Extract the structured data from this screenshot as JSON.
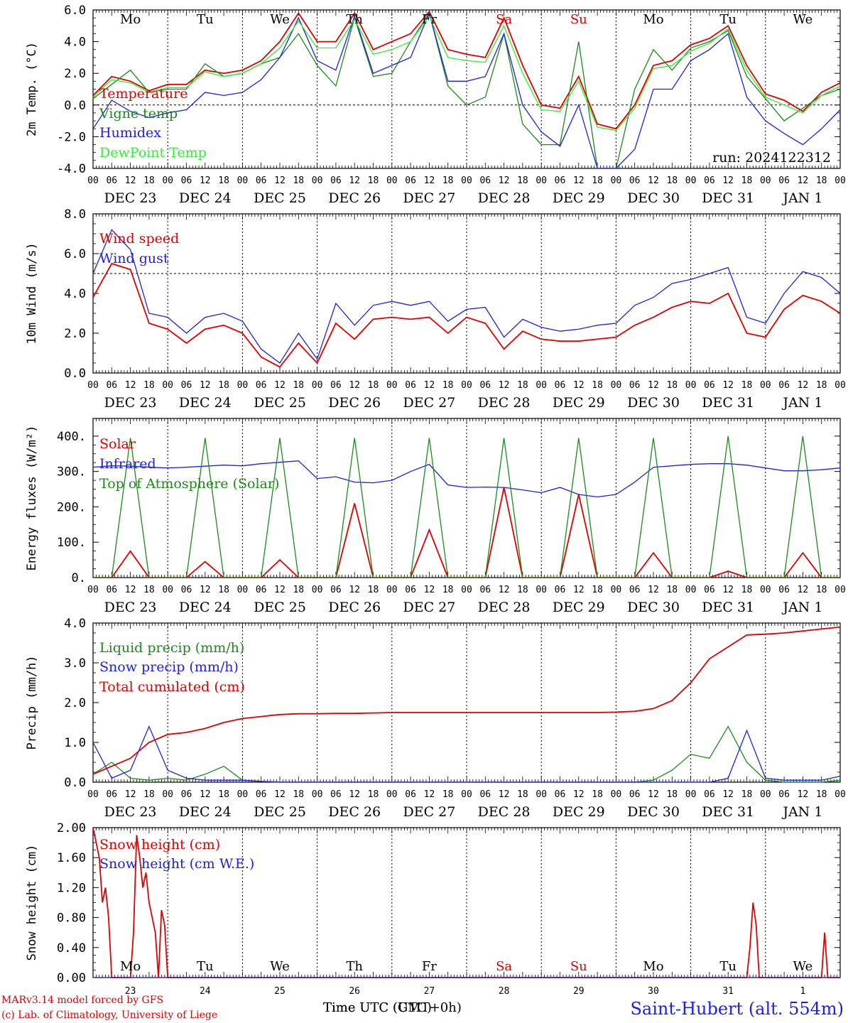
{
  "colors": {
    "red": "#e00000",
    "green": "#1a8a1a",
    "blue": "#2020e0",
    "lightgreen": "#33ee33",
    "black": "#000000"
  },
  "x_axis": {
    "hour_labels": [
      "00",
      "06",
      "12",
      "18"
    ],
    "final_hour_label": "00",
    "dates": [
      "DEC 23",
      "DEC 24",
      "DEC 25",
      "DEC 26",
      "DEC 27",
      "DEC 28",
      "DEC 29",
      "DEC 30",
      "DEC 31",
      "JAN  1"
    ],
    "weekdays": [
      "Mo",
      "Tu",
      "We",
      "Th",
      "Fr",
      "Sa",
      "Su",
      "Mo",
      "Tu",
      "We"
    ],
    "weekend_flags": [
      false,
      false,
      false,
      false,
      false,
      true,
      true,
      false,
      false,
      false
    ],
    "day_numbers": [
      "23",
      "24",
      "25",
      "26",
      "27",
      "28",
      "29",
      "30",
      "31",
      "1"
    ]
  },
  "footer": {
    "credit_line1": "MARv3.14 model forced by GFS",
    "credit_line2": "(c) Lab. of Climatology, University of Liege",
    "xlabel_a": "Time UTC (UTC)",
    "xlabel_b": "Time UTC (GMT+0h)",
    "station": "Saint-Hubert (alt. 554m)"
  },
  "chart_data": [
    {
      "type": "line",
      "ylabel": "2m Temp. (°C)",
      "ylim": [
        -4,
        6
      ],
      "yticks": [
        "6.0",
        "4.0",
        "2.0",
        "0.0",
        "-2.0",
        "-4.0"
      ],
      "ytick_values": [
        6,
        4,
        2,
        0,
        -2,
        -4
      ],
      "reference_line": 0,
      "run_label": "run: 2024122312",
      "x": [
        0,
        6,
        12,
        18,
        24,
        30,
        36,
        42,
        48,
        54,
        60,
        66,
        72,
        78,
        84,
        90,
        96,
        102,
        108,
        114,
        120,
        126,
        132,
        138,
        144,
        150,
        156,
        162,
        168,
        174,
        180,
        186,
        192,
        198,
        204,
        210,
        216,
        222,
        228,
        234,
        240
      ],
      "series": [
        {
          "name": "Temperature",
          "color": "red",
          "values": [
            0.6,
            1.8,
            1.5,
            0.9,
            1.3,
            1.3,
            2.2,
            2.0,
            2.2,
            2.8,
            4.0,
            5.8,
            4.0,
            4.0,
            5.8,
            3.5,
            4.0,
            4.5,
            5.9,
            3.5,
            3.2,
            3.0,
            5.5,
            2.5,
            0.0,
            -0.2,
            1.8,
            -1.2,
            -1.5,
            0.0,
            2.5,
            2.8,
            3.8,
            4.2,
            5.0,
            2.5,
            0.7,
            0.3,
            -0.4,
            0.8,
            1.4
          ]
        },
        {
          "name": "Vigne temp",
          "color": "green",
          "values": [
            0.4,
            1.3,
            2.2,
            0.8,
            1.0,
            1.0,
            2.6,
            1.8,
            2.0,
            2.6,
            3.0,
            4.5,
            2.5,
            1.2,
            5.5,
            1.8,
            2.0,
            4.0,
            5.8,
            1.2,
            0.0,
            0.5,
            4.5,
            -1.2,
            -2.5,
            -2.5,
            4.0,
            -4.0,
            -4.0,
            1.0,
            3.5,
            2.2,
            3.6,
            4.0,
            4.7,
            1.8,
            0.4,
            -1.0,
            -0.2,
            0.6,
            1.0
          ]
        },
        {
          "name": "Humidex",
          "color": "blue",
          "values": [
            -1.5,
            0.3,
            -0.4,
            -0.8,
            -0.5,
            -0.3,
            0.8,
            0.6,
            0.8,
            1.6,
            3.0,
            5.5,
            2.8,
            2.2,
            5.6,
            2.0,
            2.5,
            3.0,
            5.8,
            1.5,
            1.5,
            1.8,
            4.5,
            0.0,
            -1.7,
            -2.6,
            0.0,
            -4.0,
            -4.0,
            -2.8,
            1.0,
            1.0,
            2.8,
            3.5,
            4.5,
            0.5,
            -1.0,
            -1.8,
            -2.5,
            -1.5,
            -0.3
          ]
        },
        {
          "name": "DewPoint Temp",
          "color": "lightgreen",
          "values": [
            0.5,
            1.6,
            1.4,
            0.8,
            1.1,
            1.1,
            2.1,
            1.8,
            2.0,
            2.6,
            3.6,
            5.3,
            3.6,
            3.6,
            5.4,
            3.2,
            3.5,
            4.0,
            5.6,
            3.0,
            2.8,
            2.7,
            5.0,
            2.0,
            -0.3,
            -0.4,
            1.5,
            -1.4,
            -1.6,
            -0.2,
            2.3,
            2.5,
            3.4,
            3.9,
            4.8,
            2.2,
            0.5,
            0.0,
            -0.5,
            0.6,
            1.2
          ]
        }
      ]
    },
    {
      "type": "line",
      "ylabel": "10m Wind (m/s)",
      "ylim": [
        0,
        8
      ],
      "yticks": [
        "8.0",
        "6.0",
        "4.0",
        "2.0",
        "0.0"
      ],
      "ytick_values": [
        8,
        6,
        4,
        2,
        0
      ],
      "reference_line": 5,
      "x": [
        0,
        6,
        12,
        18,
        24,
        30,
        36,
        42,
        48,
        54,
        60,
        66,
        72,
        78,
        84,
        90,
        96,
        102,
        108,
        114,
        120,
        126,
        132,
        138,
        144,
        150,
        156,
        162,
        168,
        174,
        180,
        186,
        192,
        198,
        204,
        210,
        216,
        222,
        228,
        234,
        240
      ],
      "series": [
        {
          "name": "Wind speed",
          "color": "red",
          "values": [
            3.8,
            5.5,
            5.2,
            2.5,
            2.2,
            1.5,
            2.2,
            2.4,
            2.0,
            0.8,
            0.3,
            1.5,
            0.5,
            2.5,
            1.7,
            2.7,
            2.8,
            2.7,
            2.8,
            2.0,
            2.8,
            2.5,
            1.2,
            2.1,
            1.7,
            1.6,
            1.6,
            1.7,
            1.8,
            2.4,
            2.8,
            3.3,
            3.6,
            3.5,
            4.0,
            2.0,
            1.8,
            3.2,
            3.9,
            3.6,
            3.0
          ]
        },
        {
          "name": "Wind gust",
          "color": "blue",
          "values": [
            5.0,
            7.2,
            6.2,
            3.0,
            2.8,
            2.0,
            2.8,
            3.0,
            2.6,
            1.2,
            0.5,
            2.0,
            0.7,
            3.5,
            2.4,
            3.4,
            3.6,
            3.4,
            3.6,
            2.6,
            3.2,
            3.3,
            1.8,
            2.7,
            2.3,
            2.1,
            2.2,
            2.4,
            2.5,
            3.4,
            3.8,
            4.5,
            4.7,
            5.0,
            5.3,
            2.8,
            2.5,
            4.0,
            5.1,
            4.8,
            4.0
          ]
        }
      ]
    },
    {
      "type": "line",
      "ylabel": "Energy fluxes (W/m²)",
      "ylim": [
        0,
        450
      ],
      "yticks": [
        "400.",
        "300.",
        "200.",
        "100.",
        "0."
      ],
      "ytick_values": [
        400,
        300,
        200,
        100,
        0
      ],
      "x": [
        0,
        6,
        12,
        18,
        24,
        30,
        36,
        42,
        48,
        54,
        60,
        66,
        72,
        78,
        84,
        90,
        96,
        102,
        108,
        114,
        120,
        126,
        132,
        138,
        144,
        150,
        156,
        162,
        168,
        174,
        180,
        186,
        192,
        198,
        204,
        210,
        216,
        222,
        228,
        234,
        240
      ],
      "series": [
        {
          "name": "Solar",
          "color": "red",
          "values": [
            0,
            0,
            75,
            0,
            0,
            0,
            45,
            0,
            0,
            0,
            50,
            0,
            0,
            0,
            210,
            0,
            0,
            0,
            135,
            0,
            0,
            0,
            255,
            0,
            0,
            0,
            235,
            0,
            0,
            0,
            70,
            0,
            0,
            0,
            18,
            0,
            0,
            0,
            70,
            0,
            0
          ]
        },
        {
          "name": "Infrared",
          "color": "blue",
          "values": [
            312,
            316,
            315,
            312,
            310,
            312,
            315,
            318,
            316,
            322,
            326,
            330,
            280,
            285,
            270,
            268,
            275,
            300,
            320,
            262,
            255,
            256,
            255,
            248,
            240,
            255,
            235,
            228,
            235,
            270,
            312,
            316,
            320,
            322,
            322,
            318,
            310,
            302,
            302,
            305,
            310
          ]
        },
        {
          "name": "Top of Atmosphere (Solar)",
          "color": "green",
          "values": [
            0,
            0,
            395,
            0,
            0,
            0,
            395,
            0,
            0,
            0,
            395,
            0,
            0,
            0,
            395,
            0,
            0,
            0,
            395,
            0,
            0,
            0,
            395,
            0,
            0,
            0,
            395,
            0,
            0,
            0,
            395,
            0,
            0,
            0,
            400,
            0,
            0,
            0,
            400,
            0,
            0
          ]
        }
      ]
    },
    {
      "type": "line",
      "ylabel": "Precip (mm/h)",
      "ylim": [
        0,
        4
      ],
      "yticks": [
        "4.0",
        "3.0",
        "2.0",
        "1.0",
        "0.0"
      ],
      "ytick_values": [
        4,
        3,
        2,
        1,
        0
      ],
      "x": [
        0,
        6,
        12,
        18,
        24,
        30,
        36,
        42,
        48,
        54,
        60,
        66,
        72,
        78,
        84,
        90,
        96,
        102,
        108,
        114,
        120,
        126,
        132,
        138,
        144,
        150,
        156,
        162,
        168,
        174,
        180,
        186,
        192,
        198,
        204,
        210,
        216,
        222,
        228,
        234,
        240
      ],
      "series": [
        {
          "name": "Liquid precip (mm/h)",
          "color": "green",
          "values": [
            0.2,
            0.5,
            0.1,
            0.05,
            0.1,
            0.05,
            0.2,
            0.4,
            0.05,
            0.02,
            0.0,
            0.0,
            0.0,
            0.0,
            0.0,
            0.0,
            0.0,
            0.0,
            0.0,
            0.0,
            0.0,
            0.0,
            0.0,
            0.0,
            0.0,
            0.0,
            0.0,
            0.0,
            0.0,
            0.0,
            0.05,
            0.3,
            0.7,
            0.6,
            1.4,
            0.5,
            0.05,
            0.0,
            0.0,
            0.0,
            0.05
          ]
        },
        {
          "name": "Snow precip (mm/h)",
          "color": "blue",
          "values": [
            1.0,
            0.1,
            0.3,
            1.4,
            0.3,
            0.1,
            0.05,
            0.05,
            0.05,
            0.02,
            0.0,
            0.0,
            0.0,
            0.0,
            0.0,
            0.0,
            0.0,
            0.0,
            0.0,
            0.0,
            0.0,
            0.0,
            0.0,
            0.0,
            0.0,
            0.0,
            0.0,
            0.0,
            0.0,
            0.0,
            0.0,
            0.0,
            0.0,
            0.0,
            0.1,
            1.3,
            0.1,
            0.05,
            0.05,
            0.05,
            0.15
          ]
        },
        {
          "name": "Total cumulated (cm)",
          "color": "red",
          "values": [
            0.2,
            0.4,
            0.6,
            1.0,
            1.2,
            1.25,
            1.35,
            1.5,
            1.6,
            1.65,
            1.7,
            1.72,
            1.72,
            1.73,
            1.73,
            1.74,
            1.75,
            1.75,
            1.75,
            1.75,
            1.75,
            1.75,
            1.75,
            1.75,
            1.75,
            1.75,
            1.75,
            1.75,
            1.76,
            1.78,
            1.85,
            2.05,
            2.5,
            3.1,
            3.4,
            3.7,
            3.72,
            3.75,
            3.8,
            3.85,
            3.9
          ]
        }
      ]
    },
    {
      "type": "line",
      "ylabel": "Snow height (cm)",
      "ylim": [
        0,
        2
      ],
      "yticks": [
        "2.00",
        "1.60",
        "1.20",
        "0.80",
        "0.40",
        "0.00"
      ],
      "ytick_values": [
        2.0,
        1.6,
        1.2,
        0.8,
        0.4,
        0.0
      ],
      "x": [
        0,
        2,
        3,
        4,
        5,
        6,
        8,
        10,
        12,
        13,
        14,
        15,
        16,
        17,
        18,
        19,
        20,
        21,
        22,
        23,
        24,
        25,
        26,
        27,
        28,
        30,
        36,
        60,
        84,
        108,
        132,
        156,
        180,
        204,
        210,
        211,
        212,
        213,
        214,
        216,
        230,
        234,
        235,
        236,
        238,
        240
      ],
      "series": [
        {
          "name": "Snow height (cm)",
          "color": "red",
          "values": [
            2.0,
            1.6,
            1.0,
            1.2,
            0.8,
            0.0,
            0.0,
            0.0,
            0.0,
            0.6,
            1.9,
            1.6,
            1.2,
            1.4,
            1.0,
            0.8,
            0.6,
            0.0,
            0.9,
            0.7,
            0.0,
            0.0,
            0.0,
            0.0,
            0.0,
            0.0,
            0.0,
            0.0,
            0.0,
            0.0,
            0.0,
            0.0,
            0.0,
            0.0,
            0.0,
            0.4,
            1.0,
            0.7,
            0.0,
            0.0,
            0.0,
            0.0,
            0.6,
            0.0,
            0.0,
            0.0
          ]
        },
        {
          "name": "Snow height (cm W.E.)",
          "color": "blue",
          "values": [
            0.0,
            0.0,
            0.0,
            0.0,
            0.0,
            0.0,
            0.0,
            0.0,
            0.0,
            0.0,
            0.0,
            0.0,
            0.0,
            0.0,
            0.0,
            0.0,
            0.0,
            0.0,
            0.0,
            0.0,
            0.0,
            0.0,
            0.0,
            0.0,
            0.0,
            0.0,
            0.0,
            0.0,
            0.0,
            0.0,
            0.0,
            0.0,
            0.0,
            0.0,
            0.0,
            0.0,
            0.0,
            0.0,
            0.0,
            0.0,
            0.0,
            0.0,
            0.0,
            0.0,
            0.0,
            0.0
          ]
        }
      ]
    }
  ]
}
